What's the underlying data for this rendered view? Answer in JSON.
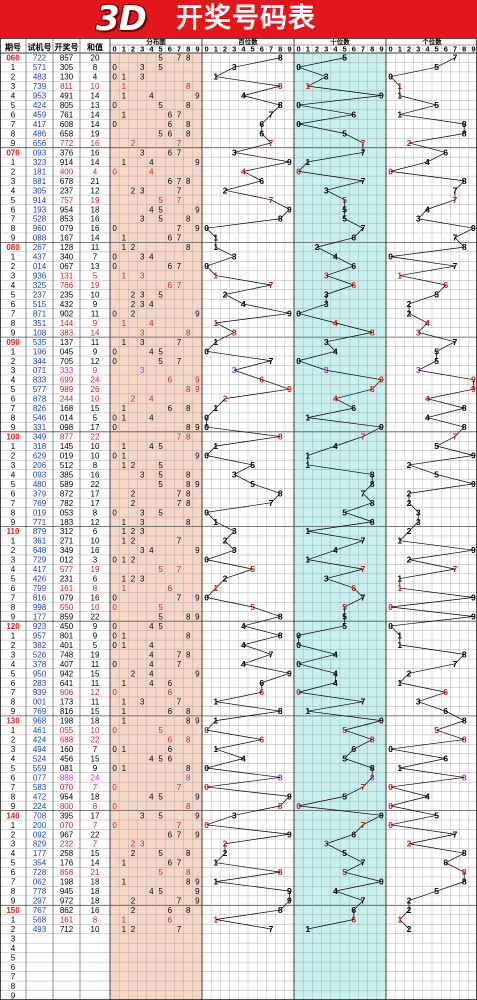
{
  "banner": {
    "logo_text": "3D",
    "title": "开奖号码表"
  },
  "colors": {
    "banner": "#e4161b",
    "distribution_bg": "#f7d7c8",
    "tens_bg": "#c7f0ef",
    "highlight": "#e0161b",
    "triple": "#c020e0",
    "grid_line": "#9a9a9a"
  },
  "headers": {
    "period": "期号",
    "test": "试机号",
    "draw": "开奖号",
    "sum": "和值",
    "distribution": "分布图",
    "hundreds": "百位数",
    "tens": "十位数",
    "units": "个位数"
  },
  "digits": [
    "0",
    "1",
    "2",
    "3",
    "4",
    "5",
    "6",
    "7",
    "8",
    "9"
  ],
  "chart_data": {
    "type": "table",
    "columns": [
      "期号",
      "试机号",
      "开奖号",
      "和值"
    ],
    "rows": [
      [
        "060",
        "722",
        "857",
        "20"
      ],
      [
        "1",
        "571",
        "305",
        "8"
      ],
      [
        "2",
        "483",
        "130",
        "4"
      ],
      [
        "3",
        "739",
        "811",
        "10"
      ],
      [
        "4",
        "953",
        "491",
        "14"
      ],
      [
        "5",
        "424",
        "805",
        "13"
      ],
      [
        "6",
        "459",
        "761",
        "14"
      ],
      [
        "7",
        "417",
        "608",
        "14"
      ],
      [
        "8",
        "486",
        "658",
        "19"
      ],
      [
        "9",
        "656",
        "772",
        "16"
      ],
      [
        "070",
        "093",
        "376",
        "16"
      ],
      [
        "1",
        "323",
        "914",
        "14"
      ],
      [
        "2",
        "181",
        "400",
        "4"
      ],
      [
        "3",
        "881",
        "678",
        "21"
      ],
      [
        "4",
        "305",
        "237",
        "12"
      ],
      [
        "5",
        "914",
        "757",
        "19"
      ],
      [
        "6",
        "193",
        "954",
        "18"
      ],
      [
        "7",
        "528",
        "853",
        "16"
      ],
      [
        "8",
        "960",
        "079",
        "16"
      ],
      [
        "9",
        "088",
        "167",
        "14"
      ],
      [
        "080",
        "267",
        "128",
        "11"
      ],
      [
        "1",
        "437",
        "340",
        "7"
      ],
      [
        "2",
        "014",
        "067",
        "13"
      ],
      [
        "3",
        "936",
        "131",
        "5"
      ],
      [
        "4",
        "325",
        "766",
        "19"
      ],
      [
        "5",
        "237",
        "235",
        "10"
      ],
      [
        "6",
        "515",
        "432",
        "9"
      ],
      [
        "7",
        "871",
        "902",
        "11"
      ],
      [
        "8",
        "351",
        "144",
        "9"
      ],
      [
        "9",
        "108",
        "383",
        "14"
      ],
      [
        "090",
        "535",
        "137",
        "11"
      ],
      [
        "1",
        "196",
        "045",
        "9"
      ],
      [
        "2",
        "344",
        "705",
        "12"
      ],
      [
        "3",
        "071",
        "333",
        "9"
      ],
      [
        "4",
        "833",
        "699",
        "24"
      ],
      [
        "5",
        "577",
        "989",
        "26"
      ],
      [
        "6",
        "878",
        "244",
        "10"
      ],
      [
        "7",
        "826",
        "168",
        "15"
      ],
      [
        "8",
        "546",
        "014",
        "5"
      ],
      [
        "9",
        "331",
        "098",
        "17"
      ],
      [
        "100",
        "349",
        "877",
        "22"
      ],
      [
        "1",
        "318",
        "145",
        "10"
      ],
      [
        "2",
        "629",
        "019",
        "10"
      ],
      [
        "3",
        "206",
        "512",
        "8"
      ],
      [
        "4",
        "093",
        "385",
        "16"
      ],
      [
        "5",
        "480",
        "589",
        "22"
      ],
      [
        "6",
        "379",
        "872",
        "17"
      ],
      [
        "7",
        "769",
        "782",
        "17"
      ],
      [
        "8",
        "019",
        "053",
        "8"
      ],
      [
        "9",
        "771",
        "183",
        "12"
      ],
      [
        "110",
        "879",
        "312",
        "6"
      ],
      [
        "1",
        "361",
        "271",
        "10"
      ],
      [
        "2",
        "648",
        "349",
        "16"
      ],
      [
        "3",
        "729",
        "012",
        "3"
      ],
      [
        "4",
        "417",
        "577",
        "19"
      ],
      [
        "5",
        "426",
        "231",
        "6"
      ],
      [
        "6",
        "799",
        "161",
        "8"
      ],
      [
        "7",
        "816",
        "079",
        "16"
      ],
      [
        "8",
        "998",
        "550",
        "10"
      ],
      [
        "9",
        "177",
        "859",
        "22"
      ],
      [
        "120",
        "923",
        "450",
        "9"
      ],
      [
        "1",
        "957",
        "801",
        "9"
      ],
      [
        "2",
        "382",
        "401",
        "5"
      ],
      [
        "3",
        "526",
        "748",
        "19"
      ],
      [
        "4",
        "378",
        "407",
        "11"
      ],
      [
        "5",
        "950",
        "942",
        "15"
      ],
      [
        "6",
        "283",
        "641",
        "11"
      ],
      [
        "7",
        "939",
        "606",
        "12"
      ],
      [
        "8",
        "001",
        "173",
        "11"
      ],
      [
        "9",
        "769",
        "816",
        "15"
      ],
      [
        "130",
        "968",
        "198",
        "18"
      ],
      [
        "1",
        "461",
        "055",
        "10"
      ],
      [
        "2",
        "424",
        "688",
        "22"
      ],
      [
        "3",
        "494",
        "160",
        "7"
      ],
      [
        "4",
        "524",
        "456",
        "15"
      ],
      [
        "5",
        "559",
        "081",
        "9"
      ],
      [
        "6",
        "077",
        "888",
        "24"
      ],
      [
        "7",
        "583",
        "070",
        "7"
      ],
      [
        "8",
        "472",
        "954",
        "18"
      ],
      [
        "9",
        "224",
        "800",
        "8"
      ],
      [
        "140",
        "708",
        "395",
        "17"
      ],
      [
        "1",
        "200",
        "070",
        "7"
      ],
      [
        "2",
        "092",
        "967",
        "22"
      ],
      [
        "3",
        "829",
        "232",
        "7"
      ],
      [
        "4",
        "177",
        "258",
        "15"
      ],
      [
        "5",
        "354",
        "176",
        "14"
      ],
      [
        "6",
        "728",
        "858",
        "21"
      ],
      [
        "7",
        "062",
        "198",
        "18"
      ],
      [
        "8",
        "778",
        "945",
        "18"
      ],
      [
        "9",
        "297",
        "972",
        "18"
      ],
      [
        "150",
        "767",
        "862",
        "16"
      ],
      [
        "1",
        "568",
        "161",
        "8"
      ],
      [
        "2",
        "493",
        "712",
        "10"
      ],
      [
        "3",
        "",
        "",
        ""
      ],
      [
        "4",
        "",
        "",
        ""
      ],
      [
        "5",
        "",
        "",
        ""
      ],
      [
        "6",
        "",
        "",
        ""
      ],
      [
        "7",
        "",
        "",
        ""
      ],
      [
        "8",
        "",
        "",
        ""
      ],
      [
        "9",
        "",
        "",
        ""
      ]
    ]
  }
}
